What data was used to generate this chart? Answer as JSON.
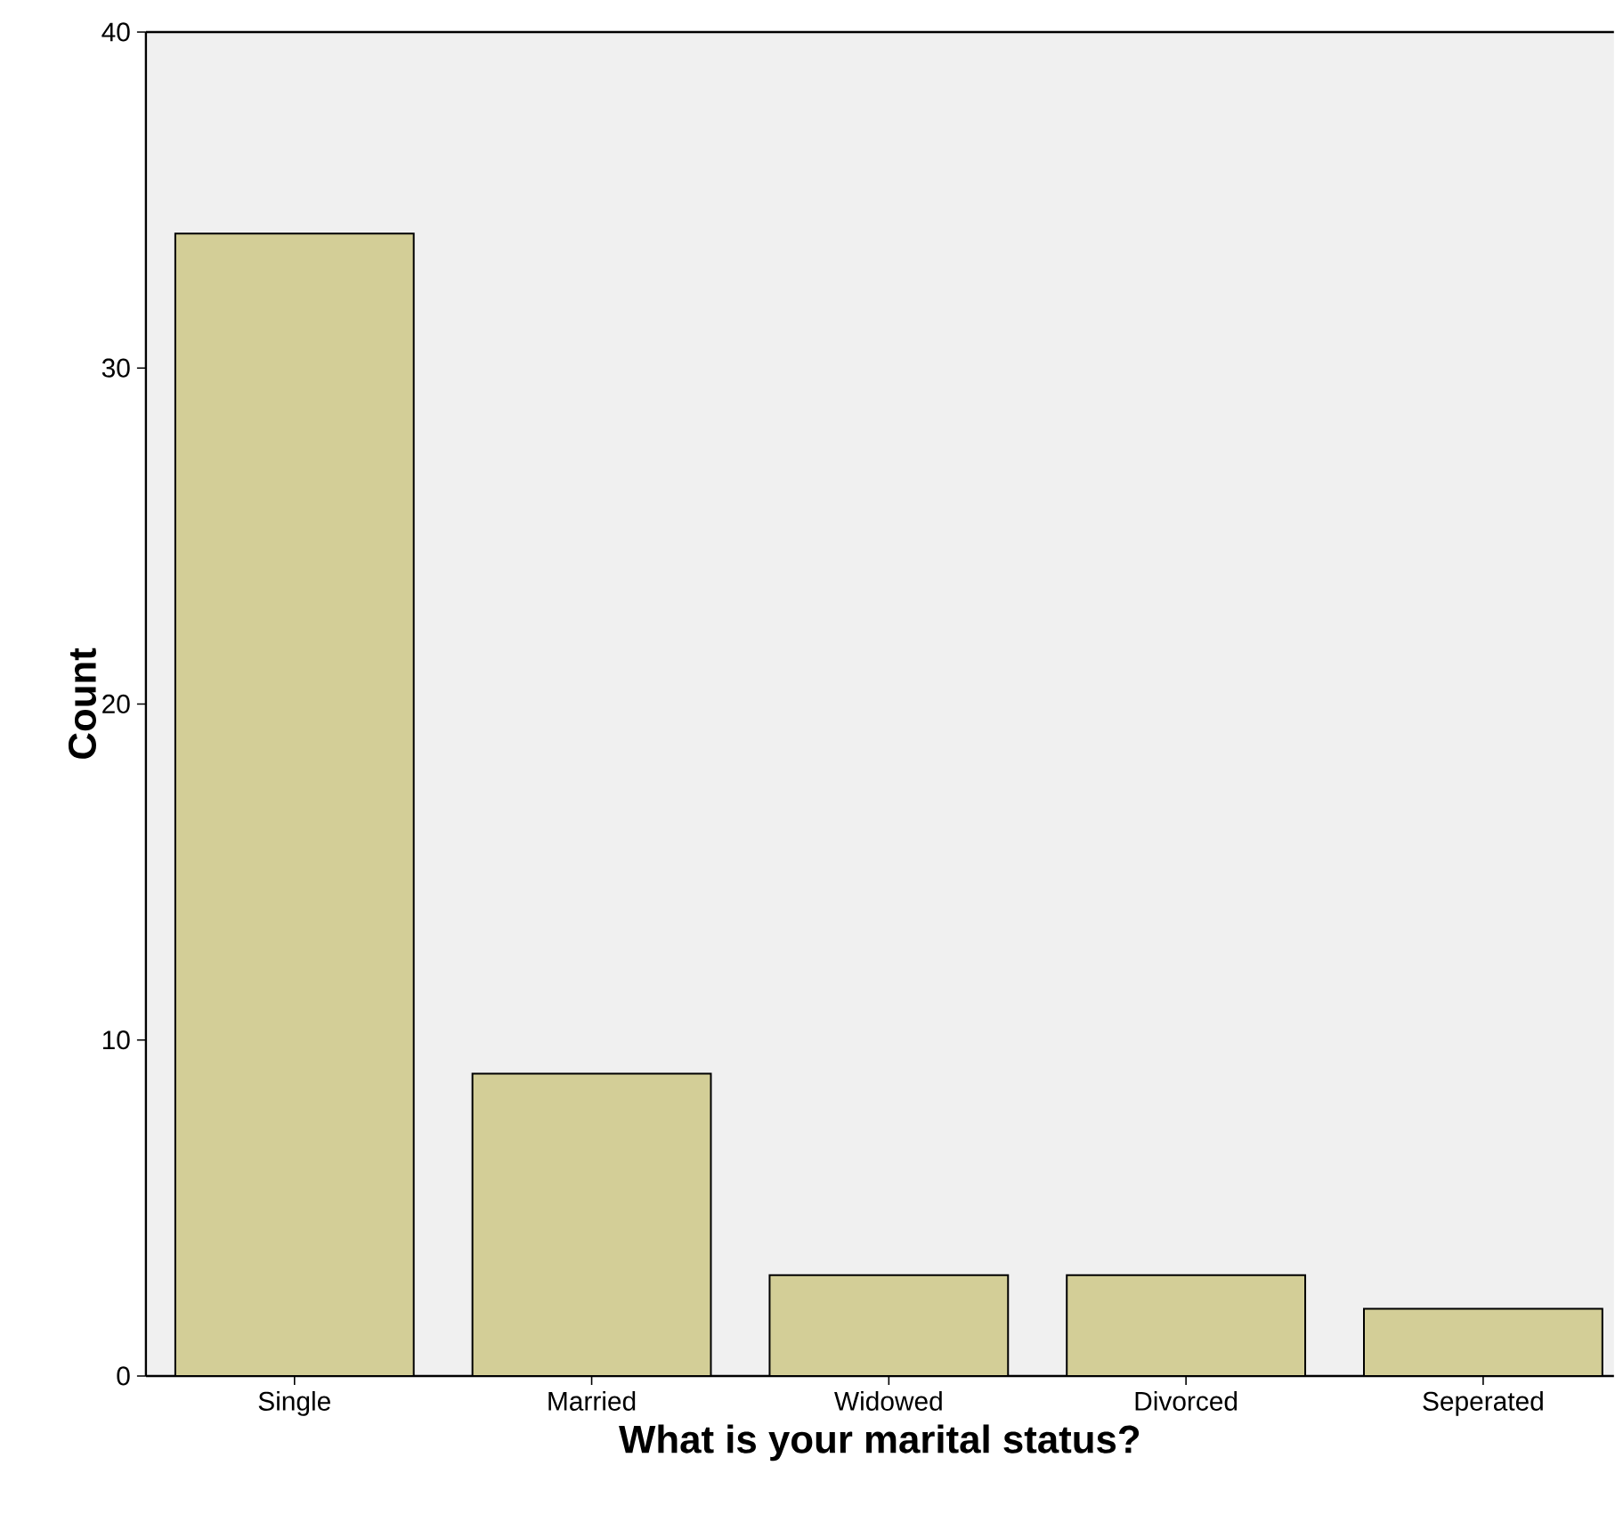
{
  "chart_data": {
    "type": "bar",
    "xlabel": "What is your marital status?",
    "ylabel": "Count",
    "categories": [
      "Single",
      "Married",
      "Widowed",
      "Divorced",
      "Seperated"
    ],
    "values": [
      34,
      9,
      3,
      3,
      2
    ],
    "color": "#d3ce97",
    "ylim": [
      0,
      40
    ],
    "yticks": [
      0,
      10,
      20,
      30,
      40
    ]
  }
}
